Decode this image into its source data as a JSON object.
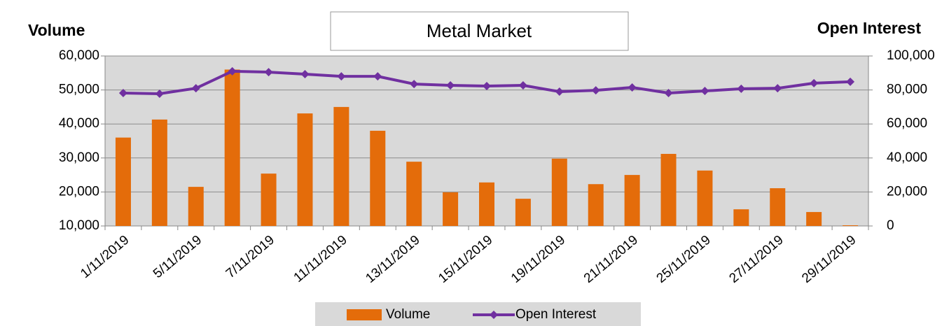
{
  "chart_data": {
    "type": "bar",
    "title": "Metal Market",
    "y_label": "Volume",
    "y2_label": "Open Interest",
    "categories": [
      "1/11/2019",
      null,
      "5/11/2019",
      null,
      "7/11/2019",
      null,
      "11/11/2019",
      null,
      "13/11/2019",
      null,
      "15/11/2019",
      null,
      "19/11/2019",
      null,
      "21/11/2019",
      null,
      "25/11/2019",
      null,
      "27/11/2019",
      null,
      "29/11/2019"
    ],
    "series": [
      {
        "name": "Volume",
        "type": "bar",
        "color": "#e46c0a",
        "values": [
          36000,
          41300,
          21500,
          56000,
          25400,
          43100,
          45000,
          38000,
          28900,
          19900,
          22800,
          18000,
          29800,
          22300,
          25000,
          31200,
          26300,
          14900,
          21100,
          14100,
          10200
        ]
      },
      {
        "name": "Open Interest",
        "type": "line",
        "axis": "y2",
        "color": "#7030a0",
        "values": [
          78200,
          77800,
          81000,
          91000,
          90500,
          89300,
          88000,
          88000,
          83500,
          82700,
          82300,
          82700,
          79000,
          79800,
          81500,
          78200,
          79400,
          80700,
          81000,
          84000,
          84800
        ]
      }
    ],
    "ylim": [
      10000,
      60000
    ],
    "yticks": [
      {
        "value": 10000,
        "label": "10,000"
      },
      {
        "value": 20000,
        "label": "20,000"
      },
      {
        "value": 30000,
        "label": "30,000"
      },
      {
        "value": 40000,
        "label": "40,000"
      },
      {
        "value": 50000,
        "label": "50,000"
      },
      {
        "value": 60000,
        "label": "60,000"
      }
    ],
    "y2lim": [
      0,
      100000
    ],
    "y2ticks": [
      0,
      {
        "value": 20000,
        "label": "20,000"
      },
      {
        "value": 40000,
        "label": "40,000"
      },
      {
        "value": 60000,
        "label": "60,000"
      },
      {
        "value": 80000,
        "label": "80,000"
      },
      {
        "value": 100000,
        "label": "100,000"
      }
    ],
    "grid": true,
    "legend": "bottom"
  }
}
